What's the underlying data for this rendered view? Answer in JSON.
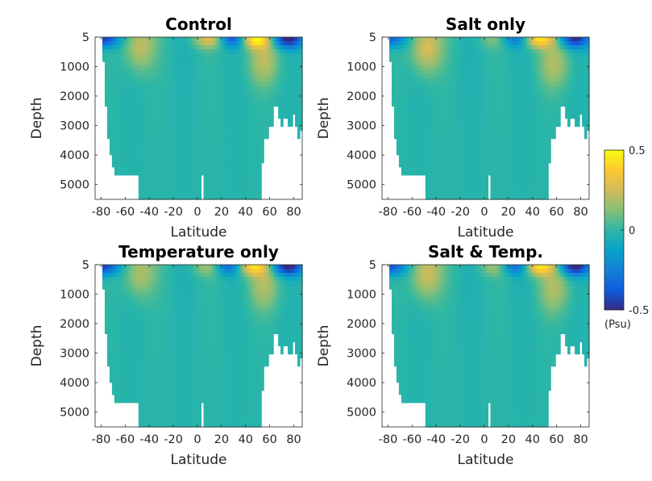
{
  "chart_data": [
    {
      "type": "heatmap",
      "title": "Control",
      "xlabel": "Latitude",
      "ylabel": "Depth",
      "xlim": [
        -85,
        87
      ],
      "ylim": [
        5,
        5500
      ],
      "y_reversed": true,
      "xticks": [
        -80,
        -60,
        -40,
        -20,
        0,
        20,
        40,
        60,
        80
      ],
      "yticks": [
        5,
        1000,
        2000,
        3000,
        4000,
        5000
      ],
      "anomalies": [
        {
          "lat": -48,
          "depth": 300,
          "value": 0.25
        },
        {
          "lat": 47,
          "depth": 60,
          "value": 0.5
        },
        {
          "lat": 10,
          "depth": 80,
          "value": 0.3
        },
        {
          "lat": 55,
          "depth": 800,
          "value": 0.22
        },
        {
          "lat": -78,
          "depth": 50,
          "value": -0.45
        },
        {
          "lat": 30,
          "depth": 40,
          "value": -0.4
        },
        {
          "lat": 75,
          "depth": 60,
          "value": -0.5
        }
      ]
    },
    {
      "type": "heatmap",
      "title": "Salt only",
      "xlabel": "Latitude",
      "ylabel": "Depth",
      "xlim": [
        -85,
        87
      ],
      "ylim": [
        5,
        5500
      ],
      "y_reversed": true,
      "xticks": [
        -80,
        -60,
        -40,
        -20,
        0,
        20,
        40,
        60,
        80
      ],
      "yticks": [
        5,
        1000,
        2000,
        3000,
        4000,
        5000
      ],
      "anomalies": [
        {
          "lat": -48,
          "depth": 350,
          "value": 0.3
        },
        {
          "lat": 45,
          "depth": 60,
          "value": 0.45
        },
        {
          "lat": 10,
          "depth": 80,
          "value": 0.15
        },
        {
          "lat": 58,
          "depth": 900,
          "value": 0.2
        },
        {
          "lat": -78,
          "depth": 50,
          "value": -0.35
        },
        {
          "lat": 25,
          "depth": 40,
          "value": -0.3
        },
        {
          "lat": 75,
          "depth": 60,
          "value": -0.45
        }
      ]
    },
    {
      "type": "heatmap",
      "title": "Temperature only",
      "xlabel": "Latitude",
      "ylabel": "Depth",
      "xlim": [
        -85,
        87
      ],
      "ylim": [
        5,
        5500
      ],
      "y_reversed": true,
      "xticks": [
        -80,
        -60,
        -40,
        -20,
        0,
        20,
        40,
        60,
        80
      ],
      "yticks": [
        5,
        1000,
        2000,
        3000,
        4000,
        5000
      ],
      "anomalies": [
        {
          "lat": -48,
          "depth": 250,
          "value": 0.22
        },
        {
          "lat": 45,
          "depth": 60,
          "value": 0.4
        },
        {
          "lat": 10,
          "depth": 80,
          "value": 0.2
        },
        {
          "lat": 55,
          "depth": 700,
          "value": 0.2
        },
        {
          "lat": -78,
          "depth": 50,
          "value": -0.45
        },
        {
          "lat": 25,
          "depth": 40,
          "value": -0.35
        },
        {
          "lat": 75,
          "depth": 60,
          "value": -0.5
        }
      ]
    },
    {
      "type": "heatmap",
      "title": "Salt & Temp.",
      "xlabel": "Latitude",
      "ylabel": "Depth",
      "xlim": [
        -85,
        87
      ],
      "ylim": [
        5,
        5500
      ],
      "y_reversed": true,
      "xticks": [
        -80,
        -60,
        -40,
        -20,
        0,
        20,
        40,
        60,
        80
      ],
      "yticks": [
        5,
        1000,
        2000,
        3000,
        4000,
        5000
      ],
      "anomalies": [
        {
          "lat": -48,
          "depth": 300,
          "value": 0.28
        },
        {
          "lat": 45,
          "depth": 60,
          "value": 0.45
        },
        {
          "lat": 10,
          "depth": 80,
          "value": 0.2
        },
        {
          "lat": 58,
          "depth": 800,
          "value": 0.2
        },
        {
          "lat": -78,
          "depth": 50,
          "value": -0.4
        },
        {
          "lat": 25,
          "depth": 40,
          "value": -0.35
        },
        {
          "lat": 75,
          "depth": 60,
          "value": -0.5
        }
      ]
    }
  ],
  "colorbar": {
    "min": -0.5,
    "max": 0.5,
    "tick_labels": [
      "0.5",
      "0",
      "-0.5"
    ],
    "tick_values": [
      0.5,
      0,
      -0.5
    ],
    "unit_label": "(Psu)",
    "colormap": [
      "#352a87",
      "#0f5cdd",
      "#1481d6",
      "#06a4ca",
      "#2eb7a4",
      "#87bf77",
      "#d1bb59",
      "#fec832",
      "#f9fb0e"
    ]
  },
  "bathymetry": {
    "note_free": true,
    "bottom_depth_by_lat": [
      [
        -85,
        0
      ],
      [
        -80,
        100
      ],
      [
        -79,
        800
      ],
      [
        -78,
        1200
      ],
      [
        -77,
        2300
      ],
      [
        -76,
        3000
      ],
      [
        -75,
        3500
      ],
      [
        -74,
        4000
      ],
      [
        -72,
        4400
      ],
      [
        -70,
        4700
      ],
      [
        -50,
        5500
      ],
      [
        -1,
        5500
      ],
      [
        0,
        4700
      ],
      [
        1,
        5500
      ],
      [
        2,
        5500
      ],
      [
        3,
        4700
      ],
      [
        4,
        5500
      ],
      [
        50,
        5500
      ],
      [
        52,
        4300
      ],
      [
        54,
        3500
      ],
      [
        58,
        3000
      ],
      [
        62,
        2300
      ],
      [
        64,
        2300
      ],
      [
        66,
        2700
      ],
      [
        68,
        3000
      ],
      [
        70,
        2700
      ],
      [
        72,
        2700
      ],
      [
        74,
        3000
      ],
      [
        76,
        3000
      ],
      [
        78,
        2600
      ],
      [
        80,
        3000
      ],
      [
        82,
        3500
      ],
      [
        84,
        3100
      ],
      [
        87,
        3100
      ]
    ]
  }
}
